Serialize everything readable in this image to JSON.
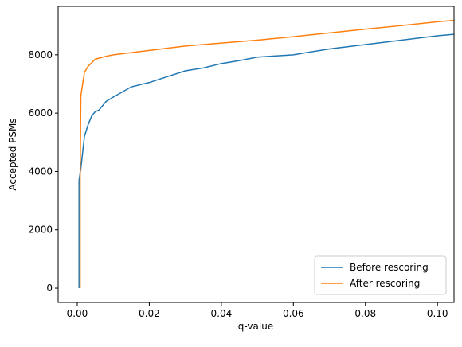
{
  "chart_data": {
    "type": "line",
    "xlabel": "q-value",
    "ylabel": "Accepted PSMs",
    "xlim": [
      -0.0053,
      0.1046
    ],
    "ylim": [
      -490,
      9660
    ],
    "xticks": [
      {
        "value": 0,
        "label": "0.00"
      },
      {
        "value": 0.02,
        "label": "0.02"
      },
      {
        "value": 0.04,
        "label": "0.04"
      },
      {
        "value": 0.06,
        "label": "0.06"
      },
      {
        "value": 0.08,
        "label": "0.08"
      },
      {
        "value": 0.1,
        "label": "0.10"
      }
    ],
    "yticks": [
      0,
      2000,
      4000,
      6000,
      8000
    ],
    "legend": "lower right",
    "series": [
      {
        "name": "Before rescoring",
        "color": "#1f77b4",
        "x": [
          0.0005,
          0.0005,
          0.001,
          0.002,
          0.003,
          0.004,
          0.005,
          0.006,
          0.008,
          0.01,
          0.015,
          0.02,
          0.025,
          0.03,
          0.035,
          0.04,
          0.045,
          0.05,
          0.06,
          0.07,
          0.08,
          0.09,
          0.1,
          0.1045
        ],
        "values": [
          0,
          3700,
          4100,
          5200,
          5600,
          5900,
          6050,
          6100,
          6400,
          6550,
          6900,
          7050,
          7250,
          7450,
          7550,
          7700,
          7800,
          7920,
          8000,
          8200,
          8350,
          8500,
          8650,
          8700
        ]
      },
      {
        "name": "After rescoring",
        "color": "#ff7f0e",
        "x": [
          0.0008,
          0.0008,
          0.001,
          0.0015,
          0.002,
          0.003,
          0.005,
          0.008,
          0.01,
          0.02,
          0.03,
          0.04,
          0.05,
          0.06,
          0.07,
          0.08,
          0.09,
          0.1,
          0.1045
        ],
        "values": [
          0,
          3700,
          6600,
          7000,
          7400,
          7600,
          7850,
          7950,
          8000,
          8150,
          8300,
          8400,
          8500,
          8620,
          8750,
          8880,
          9000,
          9130,
          9180
        ]
      }
    ]
  }
}
